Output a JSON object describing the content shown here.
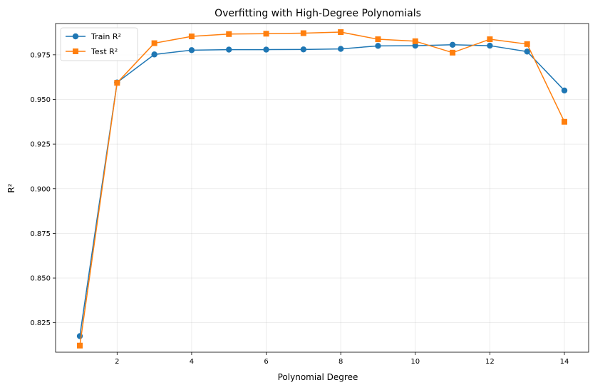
{
  "chart_data": {
    "type": "line",
    "title": "Overfitting with High-Degree Polynomials",
    "xlabel": "Polynomial Degree",
    "ylabel": "R²",
    "xlim": [
      0.35,
      14.65
    ],
    "ylim": [
      0.8085,
      0.9925
    ],
    "xticks": [
      2,
      4,
      6,
      8,
      10,
      12,
      14
    ],
    "xtick_labels": [
      "2",
      "4",
      "6",
      "8",
      "10",
      "12",
      "14"
    ],
    "yticks": [
      0.825,
      0.85,
      0.875,
      0.9,
      0.925,
      0.95,
      0.975
    ],
    "ytick_labels": [
      "0.825",
      "0.850",
      "0.875",
      "0.900",
      "0.925",
      "0.950",
      "0.975"
    ],
    "grid": true,
    "legend_position": "top-left",
    "x": [
      1,
      2,
      3,
      4,
      5,
      6,
      7,
      8,
      9,
      10,
      11,
      12,
      13,
      14
    ],
    "series": [
      {
        "name": "Train R²",
        "color": "#1f77b4",
        "marker": "circle",
        "values": [
          0.8175,
          0.9595,
          0.9752,
          0.9776,
          0.9779,
          0.9779,
          0.978,
          0.9783,
          0.98,
          0.9801,
          0.9806,
          0.9801,
          0.9768,
          0.955
        ]
      },
      {
        "name": "Test R²",
        "color": "#ff7f0e",
        "marker": "square",
        "values": [
          0.8122,
          0.9593,
          0.9815,
          0.9853,
          0.9866,
          0.9868,
          0.9871,
          0.9877,
          0.9837,
          0.9826,
          0.9762,
          0.9837,
          0.981,
          0.9375
        ]
      }
    ]
  }
}
